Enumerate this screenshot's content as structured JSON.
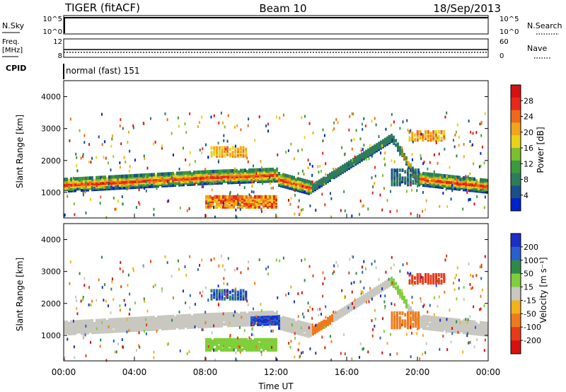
{
  "header": {
    "title": "TIGER (fitACF)",
    "beam": "Beam 10",
    "date": "18/Sep/2013"
  },
  "param_panels": {
    "nsky_label": "N.Sky",
    "nsearch_label": "N.Search",
    "nsky_ticks": [
      "10^5",
      "10^0"
    ],
    "nsearch_ticks": [
      "10^5",
      "10^0"
    ],
    "freq_label_1": "Freq.",
    "freq_label_2": "[MHz]",
    "freq_ticks": [
      "12",
      "8"
    ],
    "nave_label": "Nave",
    "nave_ticks": [
      "60",
      "0"
    ],
    "cpid_label": "CPID",
    "cpid_value": "normal (fast) 151"
  },
  "chart_data": [
    {
      "type": "heatmap",
      "name": "power",
      "ylabel": "Slant Range [km]",
      "xlabel": "",
      "yticks": [
        "4000",
        "3000",
        "2000",
        "1000"
      ],
      "ylim": [
        200,
        4500
      ],
      "xlim": [
        "00:00",
        "24:00"
      ],
      "colorbar_label": "Power [dB]",
      "colorbar_ticks": [
        "28",
        "24",
        "20",
        "16",
        "12",
        "8",
        "4"
      ],
      "colors": [
        "#0022cc",
        "#1a4f8c",
        "#2e7d5a",
        "#3c9a3c",
        "#7cbf2e",
        "#e8d21a",
        "#f2a51a",
        "#ee6a1a",
        "#e8281a",
        "#d81010"
      ]
    },
    {
      "type": "heatmap",
      "name": "velocity",
      "ylabel": "Slant Range [km]",
      "xlabel": "Time UT",
      "yticks": [
        "4000",
        "3000",
        "2000",
        "1000"
      ],
      "xticks": [
        "00:00",
        "04:00",
        "08:00",
        "12:00",
        "16:00",
        "20:00",
        "00:00"
      ],
      "ylim": [
        200,
        4500
      ],
      "colorbar_label": "Velocity [m s⁻¹]",
      "colorbar_ticks": [
        "200",
        "100",
        "50",
        "15",
        "-15",
        "-50",
        "-100",
        "-200"
      ],
      "colors": [
        "#1a2fc8",
        "#2a5fd0",
        "#2f8a4a",
        "#7fcf3a",
        "#c8c8c0",
        "#f2b21a",
        "#f07a1a",
        "#e83a1a",
        "#d81010"
      ]
    }
  ]
}
